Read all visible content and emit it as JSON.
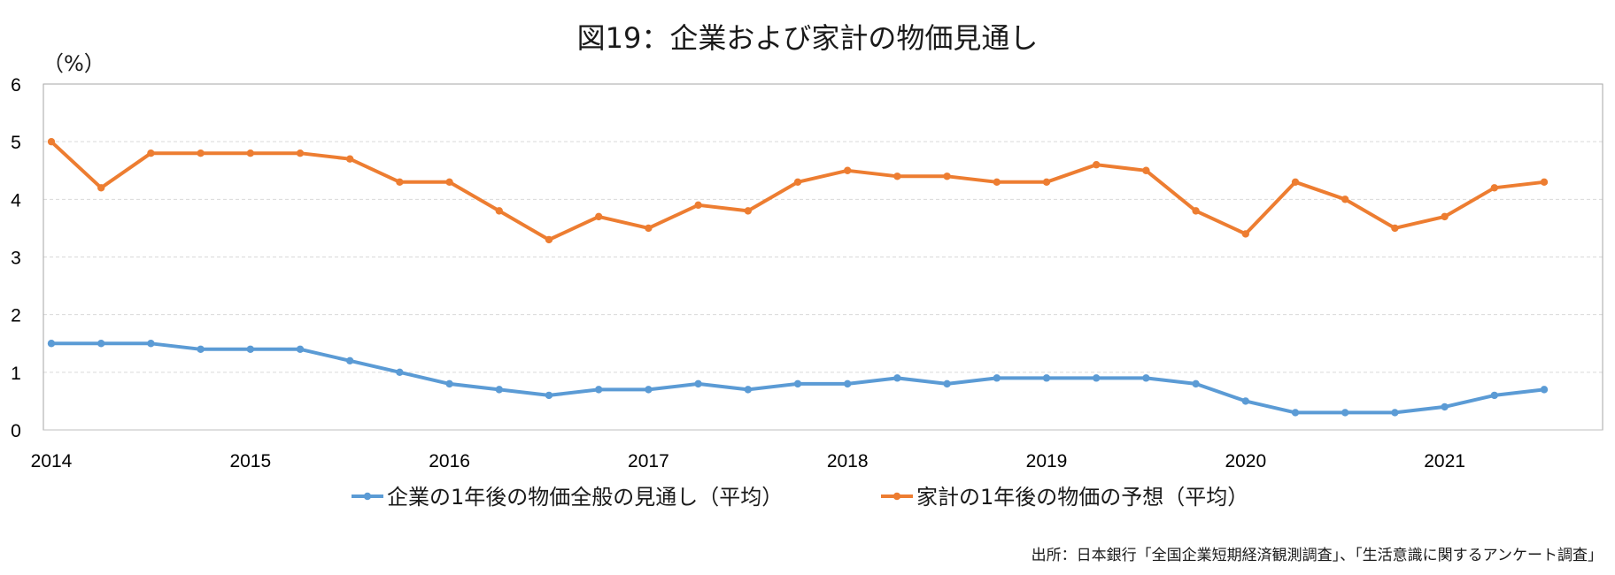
{
  "chart_data": {
    "type": "line",
    "title": "図19：企業および家計の物価見通し",
    "unit_label": "（%）",
    "source": "出所：日本銀行「全国企業短期経済観測調査」、「生活意識に関するアンケート調査」",
    "ylim": [
      0,
      6
    ],
    "yticks": [
      "0",
      "1",
      "2",
      "3",
      "4",
      "5",
      "6"
    ],
    "xticks": [
      "2014",
      "2015",
      "2016",
      "2017",
      "2018",
      "2019",
      "2020",
      "2021"
    ],
    "x_points_per_year": 4,
    "grid": "horizontal-dashed",
    "legend_position": "bottom",
    "series": [
      {
        "name": "企業の1年後の物価全般の見通し（平均）",
        "color": "#5B9BD5",
        "values": [
          1.5,
          1.5,
          1.5,
          1.4,
          1.4,
          1.4,
          1.2,
          1.0,
          0.8,
          0.7,
          0.6,
          0.7,
          0.7,
          0.8,
          0.7,
          0.8,
          0.8,
          0.9,
          0.8,
          0.9,
          0.9,
          0.9,
          0.9,
          0.8,
          0.5,
          0.3,
          0.3,
          0.3,
          0.4,
          0.6,
          0.7
        ]
      },
      {
        "name": "家計の1年後の物価の予想（平均）",
        "color": "#ED7D31",
        "values": [
          5.0,
          4.2,
          4.8,
          4.8,
          4.8,
          4.8,
          4.7,
          4.3,
          4.3,
          3.8,
          3.3,
          3.7,
          3.5,
          3.9,
          3.8,
          4.3,
          4.5,
          4.4,
          4.4,
          4.3,
          4.3,
          4.6,
          4.5,
          3.8,
          3.4,
          4.3,
          4.0,
          3.5,
          3.7,
          4.2,
          4.3
        ]
      }
    ]
  }
}
